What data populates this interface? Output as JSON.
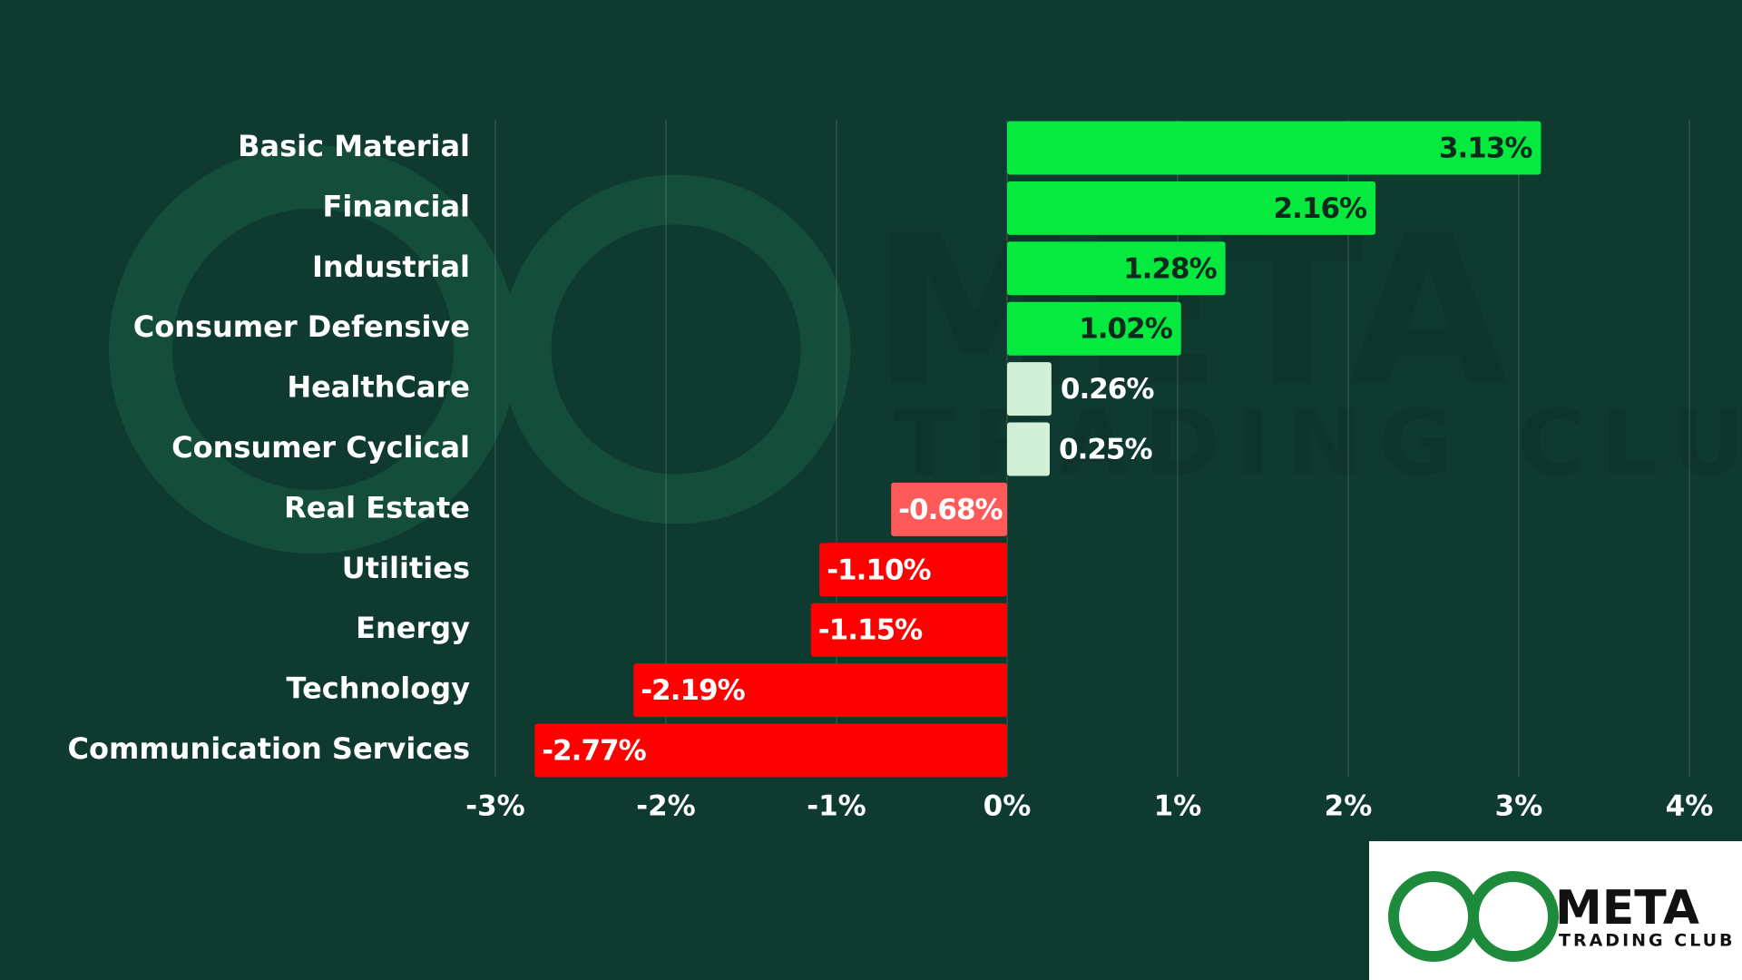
{
  "chart_data": {
    "type": "hbar",
    "categories": [
      "Basic Material",
      "Financial",
      "Industrial",
      "Consumer Defensive",
      "HealthCare",
      "Consumer Cyclical",
      "Real Estate",
      "Utilities",
      "Energy",
      "Technology",
      "Communication Services"
    ],
    "values": [
      3.13,
      2.16,
      1.28,
      1.02,
      0.26,
      0.25,
      -0.68,
      -1.1,
      -1.15,
      -2.19,
      -2.77
    ],
    "value_labels": [
      "3.13%",
      "2.16%",
      "1.28%",
      "1.02%",
      "0.26%",
      "0.25%",
      "-0.68%",
      "-1.10%",
      "-1.15%",
      "-2.19%",
      "-2.77%"
    ],
    "colors": [
      "#06ea40",
      "#06ea40",
      "#06ea40",
      "#06ea40",
      "#d2f0d8",
      "#d2f0d8",
      "#ff5a5a",
      "#ff0000",
      "#ff0000",
      "#ff0000",
      "#ff0000"
    ],
    "xlim": [
      -3,
      4
    ],
    "xticks": [
      {
        "value": -3,
        "label": "-3%"
      },
      {
        "value": -2,
        "label": "-2%"
      },
      {
        "value": -1,
        "label": "-1%"
      },
      {
        "value": 0,
        "label": "0%"
      },
      {
        "value": 1,
        "label": "1%"
      },
      {
        "value": 2,
        "label": "2%"
      },
      {
        "value": 3,
        "label": "3%"
      },
      {
        "value": 4,
        "label": "4%"
      }
    ],
    "grid": true
  },
  "logo": {
    "name": "META",
    "subtitle": "TRADING CLUB"
  }
}
